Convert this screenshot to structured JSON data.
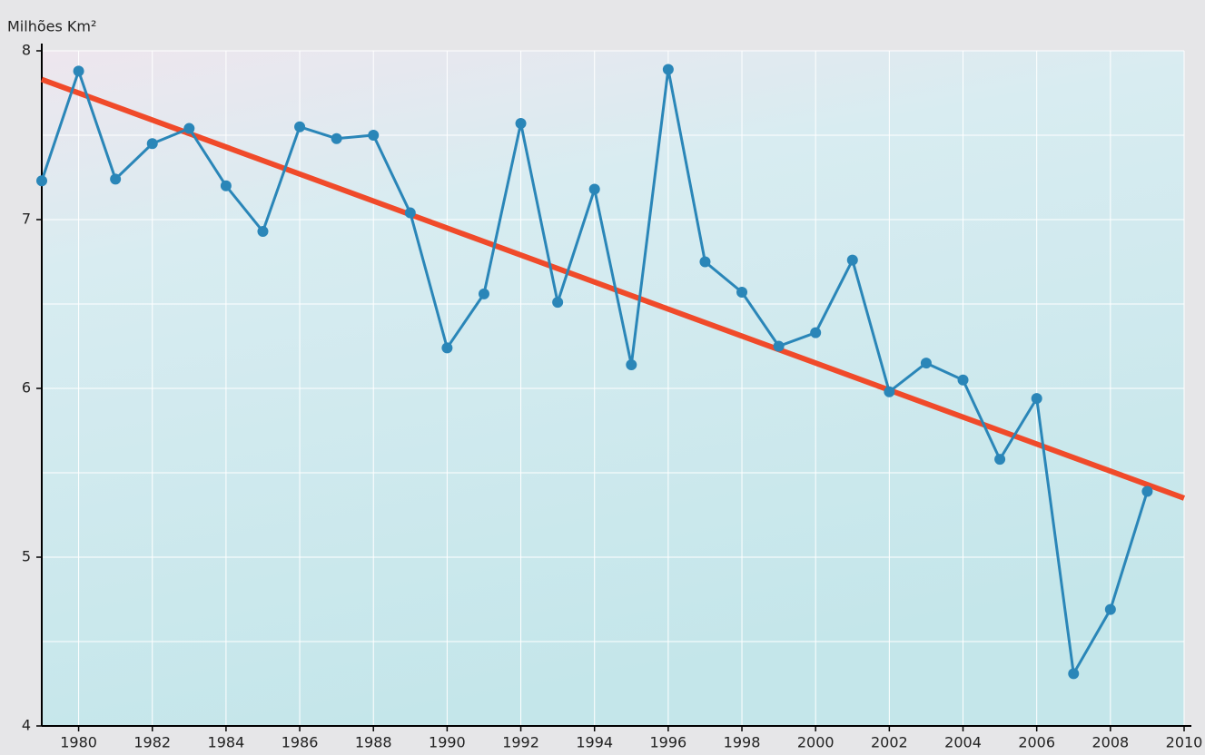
{
  "chart_data": {
    "type": "line",
    "y_label": "Milhões Km²",
    "x": [
      1979,
      1980,
      1981,
      1982,
      1983,
      1984,
      1985,
      1986,
      1987,
      1988,
      1989,
      1990,
      1991,
      1992,
      1993,
      1994,
      1995,
      1996,
      1997,
      1998,
      1999,
      2000,
      2001,
      2002,
      2003,
      2004,
      2005,
      2006,
      2007,
      2008,
      2009
    ],
    "series": [
      {
        "color": "#2a86b8",
        "values": [
          7.23,
          7.88,
          7.24,
          7.45,
          7.54,
          7.2,
          6.93,
          7.55,
          7.48,
          7.5,
          7.04,
          6.24,
          6.56,
          7.57,
          6.51,
          7.18,
          6.14,
          7.89,
          6.75,
          6.57,
          6.25,
          6.33,
          6.76,
          5.98,
          6.15,
          6.05,
          5.58,
          5.94,
          4.31,
          4.69,
          5.39
        ]
      }
    ],
    "trend": {
      "x": [
        1979,
        2010
      ],
      "values": [
        7.83,
        5.35
      ],
      "color": "#f04a2a"
    },
    "xlim": [
      1979,
      2010
    ],
    "xticks": [
      1980,
      1982,
      1984,
      1986,
      1988,
      1990,
      1992,
      1994,
      1996,
      1998,
      2000,
      2002,
      2004,
      2006,
      2008,
      2010
    ],
    "ylim": [
      4,
      8
    ],
    "yticks": [
      4,
      5,
      6,
      7,
      8
    ],
    "yminor": [
      4.5,
      5.5,
      6.5,
      7.5
    ],
    "grid": true
  }
}
